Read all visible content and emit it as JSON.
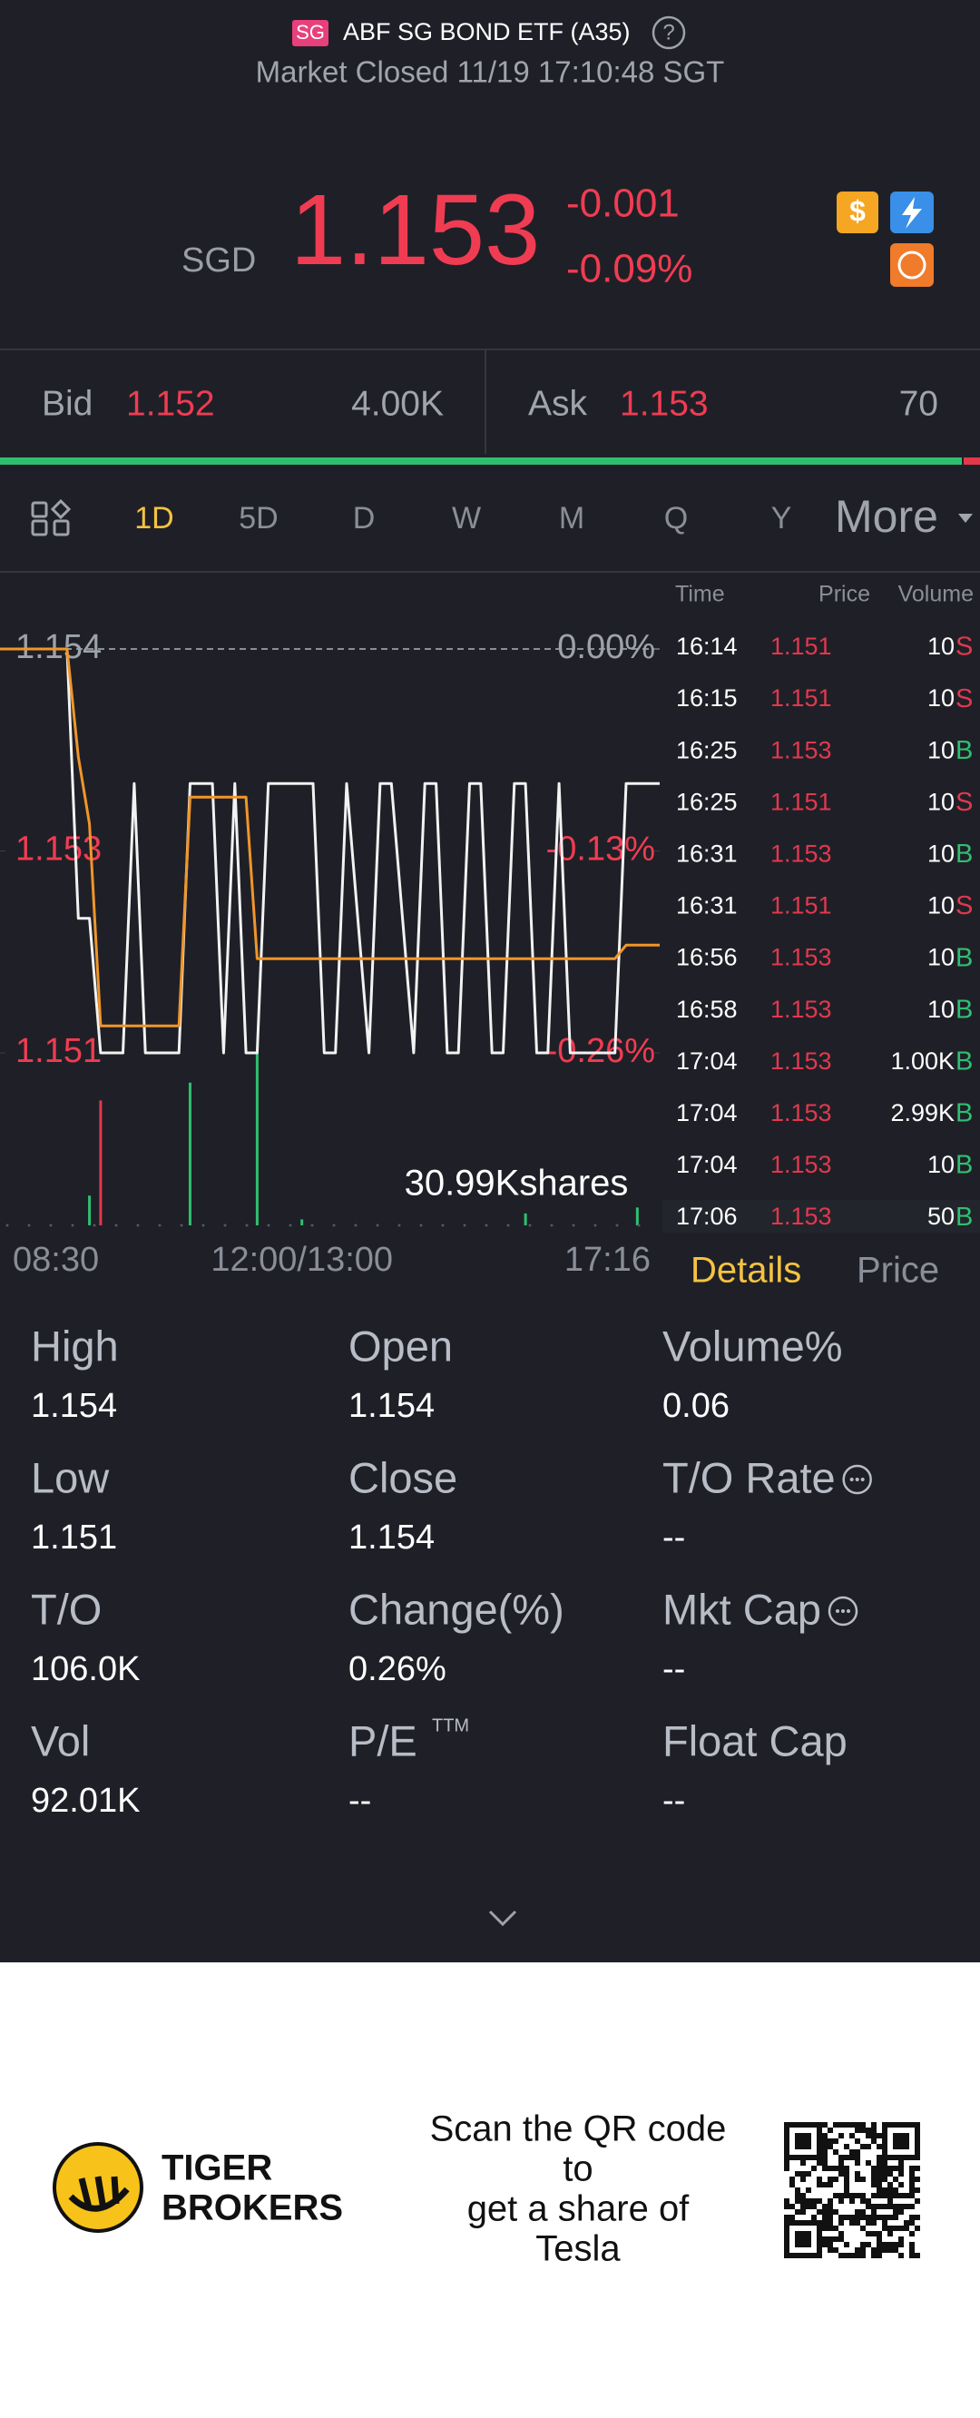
{
  "header": {
    "badge": "SG",
    "title": "ABF SG BOND ETF (A35)",
    "help": "?",
    "status": "Market Closed 11/19 17:10:48 SGT"
  },
  "quote": {
    "currency": "SGD",
    "price": "1.153",
    "change": "-0.001",
    "change_pct": "-0.09%"
  },
  "bid_ask": {
    "bid_label": "Bid",
    "bid_price": "1.152",
    "bid_size": "4.00K",
    "ask_label": "Ask",
    "ask_price": "1.153",
    "ask_size": "70"
  },
  "period_tabs": [
    "1D",
    "5D",
    "D",
    "W",
    "M",
    "Q",
    "Y",
    "More"
  ],
  "chart_data": {
    "type": "line",
    "categories": [
      "08:30",
      null,
      null,
      null,
      null,
      null,
      null,
      null,
      null,
      null,
      null,
      null,
      null,
      null,
      null,
      null,
      null,
      null,
      null,
      null,
      null,
      null,
      null,
      null,
      null,
      null,
      null,
      "12:00/13:00",
      null,
      null,
      null,
      null,
      null,
      null,
      null,
      null,
      null,
      null,
      null,
      null,
      null,
      null,
      null,
      null,
      null,
      null,
      null,
      null,
      null,
      null,
      null,
      null,
      null,
      null,
      null,
      null,
      null,
      null,
      null,
      "17:16"
    ],
    "series": [
      {
        "color": "#f2f2f2",
        "values": [
          1.154,
          1.154,
          1.154,
          1.154,
          1.154,
          1.154,
          1.154,
          1.152,
          1.152,
          1.151,
          1.151,
          1.151,
          1.153,
          1.151,
          1.151,
          1.151,
          1.151,
          1.153,
          1.153,
          1.153,
          1.151,
          1.153,
          1.151,
          1.151,
          1.153,
          1.153,
          1.153,
          1.153,
          1.153,
          1.151,
          1.151,
          1.153,
          1.152,
          1.151,
          1.153,
          1.153,
          1.152,
          1.151,
          1.153,
          1.153,
          1.151,
          1.151,
          1.153,
          1.153,
          1.151,
          1.151,
          1.153,
          1.153,
          1.151,
          1.151,
          1.153,
          1.151,
          1.151,
          1.151,
          1.151,
          1.151,
          1.153,
          1.153,
          1.153,
          1.153
        ]
      },
      {
        "color": "#f0962a",
        "values": [
          1.154,
          1.154,
          1.154,
          1.154,
          1.154,
          1.154,
          1.154,
          1.1532,
          1.1527,
          1.1512,
          1.1512,
          1.1512,
          1.1512,
          1.1512,
          1.1512,
          1.1512,
          1.1512,
          1.1529,
          1.1529,
          1.1529,
          1.1529,
          1.1529,
          1.1529,
          1.1517,
          1.1517,
          1.1517,
          1.1517,
          1.1517,
          1.1517,
          1.1517,
          1.1517,
          1.1517,
          1.1517,
          1.1517,
          1.1517,
          1.1517,
          1.1517,
          1.1517,
          1.1517,
          1.1517,
          1.1517,
          1.1517,
          1.1517,
          1.1517,
          1.1517,
          1.1517,
          1.1517,
          1.1517,
          1.1517,
          1.1517,
          1.1517,
          1.1517,
          1.1517,
          1.1517,
          1.1517,
          1.1517,
          1.1518,
          1.1518,
          1.1518,
          1.1518
        ]
      }
    ],
    "ylim": [
      1.151,
      1.154
    ],
    "yticks": [
      1.154,
      {
        "value": 1.1525,
        "label": "1.153"
      },
      1.151
    ],
    "y2lim": [
      -0.26,
      0
    ],
    "y2ticks": [
      {
        "value": 0,
        "label": "0.00%"
      },
      {
        "value": -0.13,
        "label": "-0.13%"
      },
      {
        "value": -0.26,
        "label": "-0.26%"
      }
    ],
    "reference": 1.154,
    "up_color": "#9ea2ab",
    "down_color": "#f03c52",
    "volume": {
      "label": "30.99Kshares",
      "x": [
        8,
        9,
        17,
        23,
        27,
        47,
        57
      ],
      "values": [
        5000,
        21000,
        24000,
        29000,
        1000,
        2000,
        3000
      ],
      "colors": [
        "#2fbf71",
        "#e2384e",
        "#2fbf71",
        "#2fbf71",
        "#2fbf71",
        "#2fbf71",
        "#2fbf71"
      ]
    }
  },
  "trade_ticks": {
    "headers": [
      "Time",
      "Price",
      "Volume"
    ],
    "side_colors": {
      "S": "#e2384e",
      "B": "#2fbf71"
    },
    "rows": [
      [
        "16:14",
        "1.151",
        "10",
        "S"
      ],
      [
        "16:15",
        "1.151",
        "10",
        "S"
      ],
      [
        "16:25",
        "1.153",
        "10",
        "B"
      ],
      [
        "16:25",
        "1.151",
        "10",
        "S"
      ],
      [
        "16:31",
        "1.153",
        "10",
        "B"
      ],
      [
        "16:31",
        "1.151",
        "10",
        "S"
      ],
      [
        "16:56",
        "1.153",
        "10",
        "B"
      ],
      [
        "16:58",
        "1.153",
        "10",
        "B"
      ],
      [
        "17:04",
        "1.153",
        "1.00K",
        "B"
      ],
      [
        "17:04",
        "1.153",
        "2.99K",
        "B"
      ],
      [
        "17:04",
        "1.153",
        "10",
        "B"
      ],
      [
        "17:06",
        "1.153",
        "50",
        "B"
      ]
    ]
  },
  "detail_tabs": [
    "Details",
    "Price"
  ],
  "stats": [
    {
      "label": "High",
      "value": "1.154"
    },
    {
      "label": "Open",
      "value": "1.154"
    },
    {
      "label": "Volume%",
      "value": "0.06"
    },
    {
      "label": "Low",
      "value": "1.151"
    },
    {
      "label": "Close",
      "value": "1.154"
    },
    {
      "label": "T/O Rate",
      "value": "--",
      "info": true
    },
    {
      "label": "T/O",
      "value": "106.0K"
    },
    {
      "label": "Change(%)",
      "value": "0.26%"
    },
    {
      "label": "Mkt Cap",
      "value": "--",
      "info": true
    },
    {
      "label": "Vol",
      "value": "92.01K"
    },
    {
      "label": "P/E",
      "sup": "TTM",
      "value": "--"
    },
    {
      "label": "Float Cap",
      "value": "--"
    }
  ],
  "footer": {
    "brand": [
      "TIGER",
      "BROKERS"
    ],
    "promo": [
      "Scan the QR code",
      "to",
      "get a share of",
      "Tesla"
    ]
  }
}
